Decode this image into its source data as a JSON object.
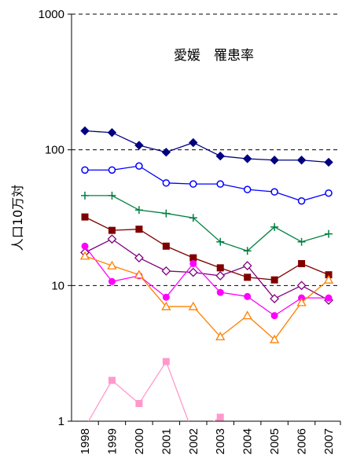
{
  "chart_data": {
    "type": "line",
    "title": "愛媛　罹患率",
    "ylabel": "人口10万対",
    "xlabel": "",
    "y_scale": "log",
    "ylim": [
      1,
      1000
    ],
    "y_ticks": [
      "1",
      "10",
      "100",
      "1000"
    ],
    "grid": "dashed horizontal at 10, 100, 1000",
    "categories": [
      "1998",
      "1999",
      "2000",
      "2001",
      "2002",
      "2003",
      "2004",
      "2005",
      "2006",
      "2007"
    ],
    "series": [
      {
        "color": "#000080",
        "marker": "diamond-filled",
        "values": [
          138,
          134,
          108,
          96,
          113,
          90,
          86,
          84,
          84,
          81
        ]
      },
      {
        "color": "#0000ff",
        "marker": "circle-open",
        "values": [
          71,
          71,
          76,
          57,
          56,
          56,
          51,
          49,
          42,
          48
        ]
      },
      {
        "color": "#008040",
        "marker": "plus",
        "values": [
          46,
          46,
          36,
          34,
          31.5,
          21,
          18,
          27,
          21,
          24
        ]
      },
      {
        "color": "#800000",
        "marker": "square-filled",
        "values": [
          32,
          25.5,
          26,
          19.5,
          16,
          13.5,
          11.5,
          11,
          14.5,
          12
        ]
      },
      {
        "color": "#800080",
        "marker": "diamond-open",
        "values": [
          17.5,
          22,
          16,
          12.8,
          12.5,
          11.8,
          14,
          8,
          10,
          7.8
        ]
      },
      {
        "color": "#ff00ff",
        "marker": "circle-filled",
        "values": [
          19.5,
          10.7,
          11.8,
          8.2,
          14.5,
          8.9,
          8.3,
          6,
          8.1,
          8.1
        ]
      },
      {
        "color": "#ff8000",
        "marker": "triangle-open",
        "values": [
          16.5,
          14,
          12,
          7,
          7,
          4.2,
          6,
          4,
          7.5,
          11
        ]
      },
      {
        "color": "#ff99cc",
        "marker": "square-filled",
        "values": [
          0.9,
          2,
          1.35,
          2.75,
          0.8,
          1.07,
          null,
          null,
          null,
          null
        ]
      }
    ]
  }
}
